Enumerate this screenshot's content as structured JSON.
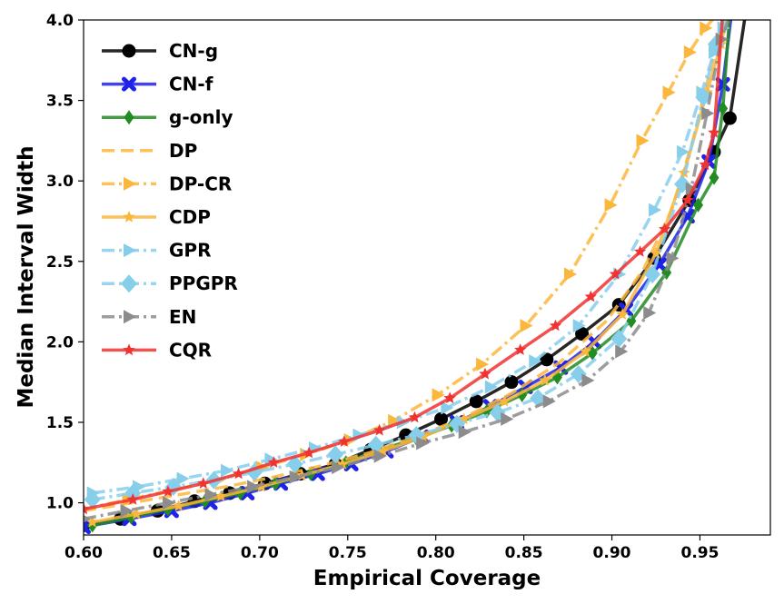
{
  "chart_data": {
    "type": "line",
    "title": "",
    "xlabel": "Empirical Coverage",
    "ylabel": "Median Interval Width",
    "xlim": [
      0.6,
      0.99
    ],
    "ylim": [
      0.8,
      4.0
    ],
    "xticks": [
      "0.60",
      "0.65",
      "0.70",
      "0.75",
      "0.80",
      "0.85",
      "0.90",
      "0.95"
    ],
    "yticks": [
      "1.0",
      "1.5",
      "2.0",
      "2.5",
      "3.0",
      "3.5",
      "4.0"
    ],
    "grid": false,
    "legend_position": "top-left",
    "series": [
      {
        "name": "CN-g",
        "color": "#000000",
        "marker": "circle",
        "dash": "solid",
        "x": [
          0.6,
          0.621,
          0.642,
          0.663,
          0.683,
          0.703,
          0.723,
          0.743,
          0.763,
          0.783,
          0.803,
          0.823,
          0.843,
          0.863,
          0.883,
          0.904,
          0.924,
          0.944,
          0.958,
          0.967,
          0.976
        ],
        "y": [
          0.86,
          0.9,
          0.95,
          1.01,
          1.06,
          1.12,
          1.18,
          1.24,
          1.33,
          1.42,
          1.52,
          1.63,
          1.75,
          1.89,
          2.05,
          2.23,
          2.52,
          2.88,
          3.18,
          3.39,
          4.05
        ]
      },
      {
        "name": "CN-f",
        "color": "#1f22e8",
        "marker": "x",
        "dash": "solid",
        "x": [
          0.6,
          0.626,
          0.65,
          0.672,
          0.693,
          0.712,
          0.733,
          0.752,
          0.772,
          0.792,
          0.812,
          0.831,
          0.851,
          0.871,
          0.89,
          0.908,
          0.927,
          0.943,
          0.955,
          0.963,
          0.968
        ],
        "y": [
          0.85,
          0.9,
          0.95,
          1.0,
          1.06,
          1.12,
          1.18,
          1.24,
          1.32,
          1.41,
          1.5,
          1.6,
          1.72,
          1.84,
          2.0,
          2.2,
          2.48,
          2.78,
          3.12,
          3.6,
          4.05
        ]
      },
      {
        "name": "g-only",
        "color": "#228b22",
        "marker": "diamond",
        "dash": "solid",
        "x": [
          0.605,
          0.627,
          0.648,
          0.669,
          0.689,
          0.709,
          0.729,
          0.749,
          0.769,
          0.789,
          0.809,
          0.829,
          0.849,
          0.869,
          0.889,
          0.911,
          0.931,
          0.949,
          0.958,
          0.963,
          0.967
        ],
        "y": [
          0.86,
          0.91,
          0.96,
          1.01,
          1.06,
          1.12,
          1.18,
          1.25,
          1.33,
          1.4,
          1.48,
          1.57,
          1.67,
          1.78,
          1.93,
          2.13,
          2.43,
          2.85,
          3.02,
          3.45,
          4.05
        ]
      },
      {
        "name": "DP",
        "color": "#fbb73c",
        "marker": "none",
        "dash": "dashed",
        "x": [
          0.6,
          0.627,
          0.654,
          0.681,
          0.708,
          0.735,
          0.762,
          0.789,
          0.816,
          0.843,
          0.87,
          0.897,
          0.918,
          0.934,
          0.946,
          0.955,
          0.961,
          0.966
        ],
        "y": [
          0.95,
          1.0,
          1.05,
          1.1,
          1.16,
          1.23,
          1.31,
          1.41,
          1.53,
          1.68,
          1.87,
          2.13,
          2.45,
          2.82,
          3.25,
          3.65,
          3.9,
          4.05
        ]
      },
      {
        "name": "DP-CR",
        "color": "#fbb73c",
        "marker": "triangle-right",
        "dash": "dashdot",
        "x": [
          0.6,
          0.625,
          0.651,
          0.676,
          0.701,
          0.726,
          0.751,
          0.776,
          0.801,
          0.826,
          0.851,
          0.876,
          0.899,
          0.917,
          0.932,
          0.944,
          0.953,
          0.961
        ],
        "y": [
          0.96,
          1.02,
          1.08,
          1.14,
          1.22,
          1.3,
          1.39,
          1.51,
          1.67,
          1.86,
          2.1,
          2.42,
          2.85,
          3.25,
          3.55,
          3.8,
          3.95,
          4.05
        ]
      },
      {
        "name": "CDP",
        "color": "#fbb73c",
        "marker": "star",
        "dash": "solid",
        "x": [
          0.605,
          0.63,
          0.654,
          0.678,
          0.701,
          0.724,
          0.747,
          0.77,
          0.793,
          0.816,
          0.839,
          0.862,
          0.885,
          0.906,
          0.925,
          0.941,
          0.954,
          0.962,
          0.966
        ],
        "y": [
          0.88,
          0.93,
          0.98,
          1.04,
          1.1,
          1.17,
          1.24,
          1.32,
          1.41,
          1.52,
          1.63,
          1.76,
          1.94,
          2.17,
          2.55,
          3.05,
          3.55,
          3.85,
          4.05
        ]
      },
      {
        "name": "GPR",
        "color": "#87ceeb",
        "marker": "triangle-right",
        "dash": "dashdot",
        "x": [
          0.605,
          0.631,
          0.656,
          0.681,
          0.706,
          0.731,
          0.756,
          0.781,
          0.806,
          0.831,
          0.856,
          0.881,
          0.904,
          0.924,
          0.94,
          0.951,
          0.958,
          0.963,
          0.967
        ],
        "y": [
          1.06,
          1.1,
          1.15,
          1.2,
          1.27,
          1.34,
          1.42,
          1.5,
          1.59,
          1.72,
          1.88,
          2.1,
          2.42,
          2.82,
          3.18,
          3.55,
          3.8,
          3.95,
          4.05
        ]
      },
      {
        "name": "PPGPR",
        "color": "#87ceeb",
        "marker": "diamond-large",
        "dash": "dashdot",
        "x": [
          0.605,
          0.628,
          0.651,
          0.674,
          0.697,
          0.72,
          0.743,
          0.766,
          0.789,
          0.812,
          0.835,
          0.858,
          0.881,
          0.904,
          0.923,
          0.94,
          0.952,
          0.959,
          0.964
        ],
        "y": [
          1.02,
          1.06,
          1.1,
          1.14,
          1.19,
          1.24,
          1.3,
          1.36,
          1.42,
          1.49,
          1.56,
          1.65,
          1.8,
          2.02,
          2.42,
          2.98,
          3.52,
          3.85,
          4.05
        ]
      },
      {
        "name": "EN",
        "color": "#8c8c8c",
        "marker": "triangle-right",
        "dash": "dashdot",
        "x": [
          0.6,
          0.624,
          0.648,
          0.672,
          0.696,
          0.72,
          0.744,
          0.768,
          0.792,
          0.816,
          0.84,
          0.864,
          0.886,
          0.905,
          0.921,
          0.934,
          0.945,
          0.954,
          0.962,
          0.968
        ],
        "y": [
          0.9,
          0.95,
          1.0,
          1.05,
          1.1,
          1.16,
          1.22,
          1.29,
          1.37,
          1.44,
          1.52,
          1.63,
          1.76,
          1.94,
          2.18,
          2.52,
          2.95,
          3.42,
          3.88,
          4.05
        ]
      },
      {
        "name": "CQR",
        "color": "#f03232",
        "marker": "star",
        "dash": "solid",
        "x": [
          0.6,
          0.628,
          0.648,
          0.668,
          0.688,
          0.708,
          0.728,
          0.748,
          0.768,
          0.788,
          0.808,
          0.828,
          0.848,
          0.868,
          0.888,
          0.902,
          0.916,
          0.93,
          0.943,
          0.953,
          0.958,
          0.963
        ],
        "y": [
          0.96,
          1.02,
          1.07,
          1.12,
          1.18,
          1.25,
          1.31,
          1.38,
          1.45,
          1.53,
          1.65,
          1.8,
          1.95,
          2.1,
          2.28,
          2.42,
          2.56,
          2.7,
          2.88,
          3.1,
          3.3,
          4.05
        ]
      }
    ]
  }
}
